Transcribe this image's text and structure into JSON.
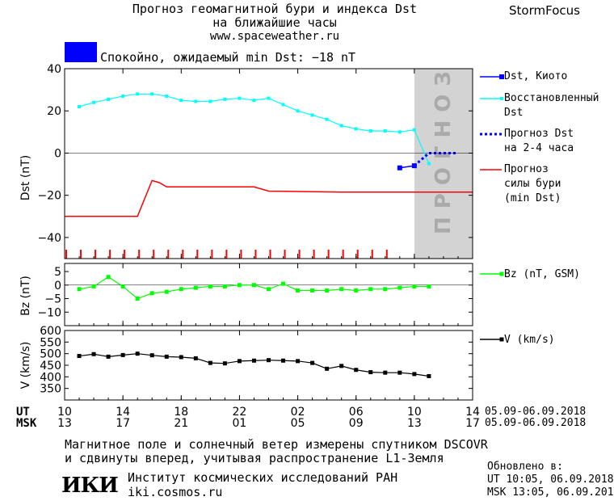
{
  "header": {
    "title_line1": "Прогноз геомагнитной бури и индекса Dst",
    "title_line2": "на ближайшие часы",
    "site": "www.spaceweather.ru",
    "brand": "StormFocus"
  },
  "status": {
    "text": "Спокойно, ожидаемый min Dst: −18 nT",
    "color": "#0000ff"
  },
  "forecast_label": "ПРОГНОЗ",
  "legend": {
    "dst_kyoto": "Dst, Киото",
    "dst_restored_1": "Восстановленный",
    "dst_restored_2": "Dst",
    "dst_forecast_1": "Прогноз Dst",
    "dst_forecast_2": "на 2-4 часа",
    "storm_1": "Прогноз",
    "storm_2": "силы бури",
    "storm_3": "(min Dst)",
    "bz": "Bz (nT, GSM)",
    "v": "V (km/s)"
  },
  "axes": {
    "ut_label": "UT",
    "msk_label": "MSK",
    "ut_ticks": [
      "10",
      "14",
      "18",
      "22",
      "02",
      "06",
      "10",
      "14"
    ],
    "msk_ticks": [
      "13",
      "17",
      "21",
      "01",
      "05",
      "09",
      "13",
      "17"
    ],
    "date_range_ut": "05.09-06.09.2018",
    "date_range_msk": "05.09-06.09.2018"
  },
  "footer": {
    "line1": "Магнитное поле и солнечный ветер измерены спутником DSCOVR",
    "line2": "и сдвинуты вперед, учитывая распространение L1-Земля",
    "logo": "ИКИ",
    "institute": "Институт космических исследований РАН",
    "url": "iki.cosmos.ru",
    "updated_label": "Обновлено в:",
    "updated_ut": "UT  10:05, 06.09.2018",
    "updated_msk": "MSK 13:05, 06.09.2018"
  },
  "chart_data": [
    {
      "type": "line",
      "ylabel": "Dst (nT)",
      "xlim_hours_ut": [
        10,
        38
      ],
      "ylim": [
        -50,
        40
      ],
      "yticks": [
        40,
        20,
        0,
        -20,
        -40
      ],
      "forecast_region_hours_ut": [
        34,
        38
      ],
      "colors": {
        "dst_kyoto": "#0000ff",
        "dst_restored": "#00ffff",
        "dst_forecast": "#0000ff",
        "storm": "#ff0000",
        "forecast_fill": "#d3d3d3"
      },
      "series": [
        {
          "name": "Dst, Киото",
          "x": [
            33,
            34
          ],
          "y": [
            -7,
            -6
          ]
        },
        {
          "name": "Восстановленный Dst",
          "x": [
            11,
            12,
            13,
            14,
            15,
            16,
            17,
            18,
            19,
            20,
            21,
            22,
            23,
            24,
            25,
            26,
            27,
            28,
            29,
            30,
            31,
            32,
            33,
            34,
            35
          ],
          "y": [
            22,
            24,
            25.5,
            27,
            28,
            28,
            27,
            25,
            24.5,
            24.5,
            25.5,
            26,
            25,
            26,
            23,
            20,
            18,
            16,
            13,
            11.5,
            10.5,
            10.5,
            10,
            11,
            -5
          ]
        },
        {
          "name": "Прогноз Dst на 2-4 часа",
          "x": [
            34,
            35,
            36,
            37
          ],
          "y": [
            -6,
            0,
            0,
            0
          ]
        },
        {
          "name": "Прогноз силы бури (min Dst)",
          "x": [
            10,
            15,
            16,
            16.5,
            17,
            22,
            23,
            24,
            29,
            38
          ],
          "y": [
            -30,
            -30,
            -13,
            -14,
            -16,
            -16,
            -16,
            -18,
            -18.5,
            -18.5
          ]
        }
      ],
      "storm_marker_hours_ut": [
        10,
        11,
        12,
        13,
        14,
        15,
        16,
        17,
        18,
        19,
        20,
        21,
        22,
        23,
        24,
        25,
        26,
        27,
        28,
        29,
        30,
        31,
        32
      ]
    },
    {
      "type": "line",
      "ylabel": "Bz (nT)",
      "ylim": [
        -15,
        8
      ],
      "yticks": [
        5,
        0,
        -5,
        -10
      ],
      "color": "#00ff00",
      "series": [
        {
          "name": "Bz (nT, GSM)",
          "x": [
            11,
            12,
            13,
            14,
            15,
            16,
            17,
            18,
            19,
            20,
            21,
            22,
            23,
            24,
            25,
            26,
            27,
            28,
            29,
            30,
            31,
            32,
            33,
            34,
            35
          ],
          "y": [
            -1.5,
            -0.5,
            3,
            -0.5,
            -5,
            -3,
            -2.5,
            -1.5,
            -1,
            -0.5,
            -0.5,
            0,
            0,
            -1.5,
            0.5,
            -2,
            -2,
            -2,
            -1.5,
            -2,
            -1.5,
            -1.5,
            -1,
            -0.5,
            -0.5
          ]
        }
      ]
    },
    {
      "type": "line",
      "ylabel": "V (km/s)",
      "ylim": [
        300,
        600
      ],
      "yticks": [
        600,
        550,
        500,
        450,
        400,
        350
      ],
      "color": "#000000",
      "series": [
        {
          "name": "V (km/s)",
          "x": [
            11,
            12,
            13,
            14,
            15,
            16,
            17,
            18,
            19,
            20,
            21,
            22,
            23,
            24,
            25,
            26,
            27,
            28,
            29,
            30,
            31,
            32,
            33,
            34,
            35
          ],
          "y": [
            490,
            498,
            487,
            494,
            500,
            493,
            487,
            485,
            480,
            460,
            458,
            468,
            470,
            472,
            470,
            468,
            460,
            435,
            447,
            430,
            420,
            418,
            418,
            412,
            403
          ]
        }
      ]
    }
  ]
}
